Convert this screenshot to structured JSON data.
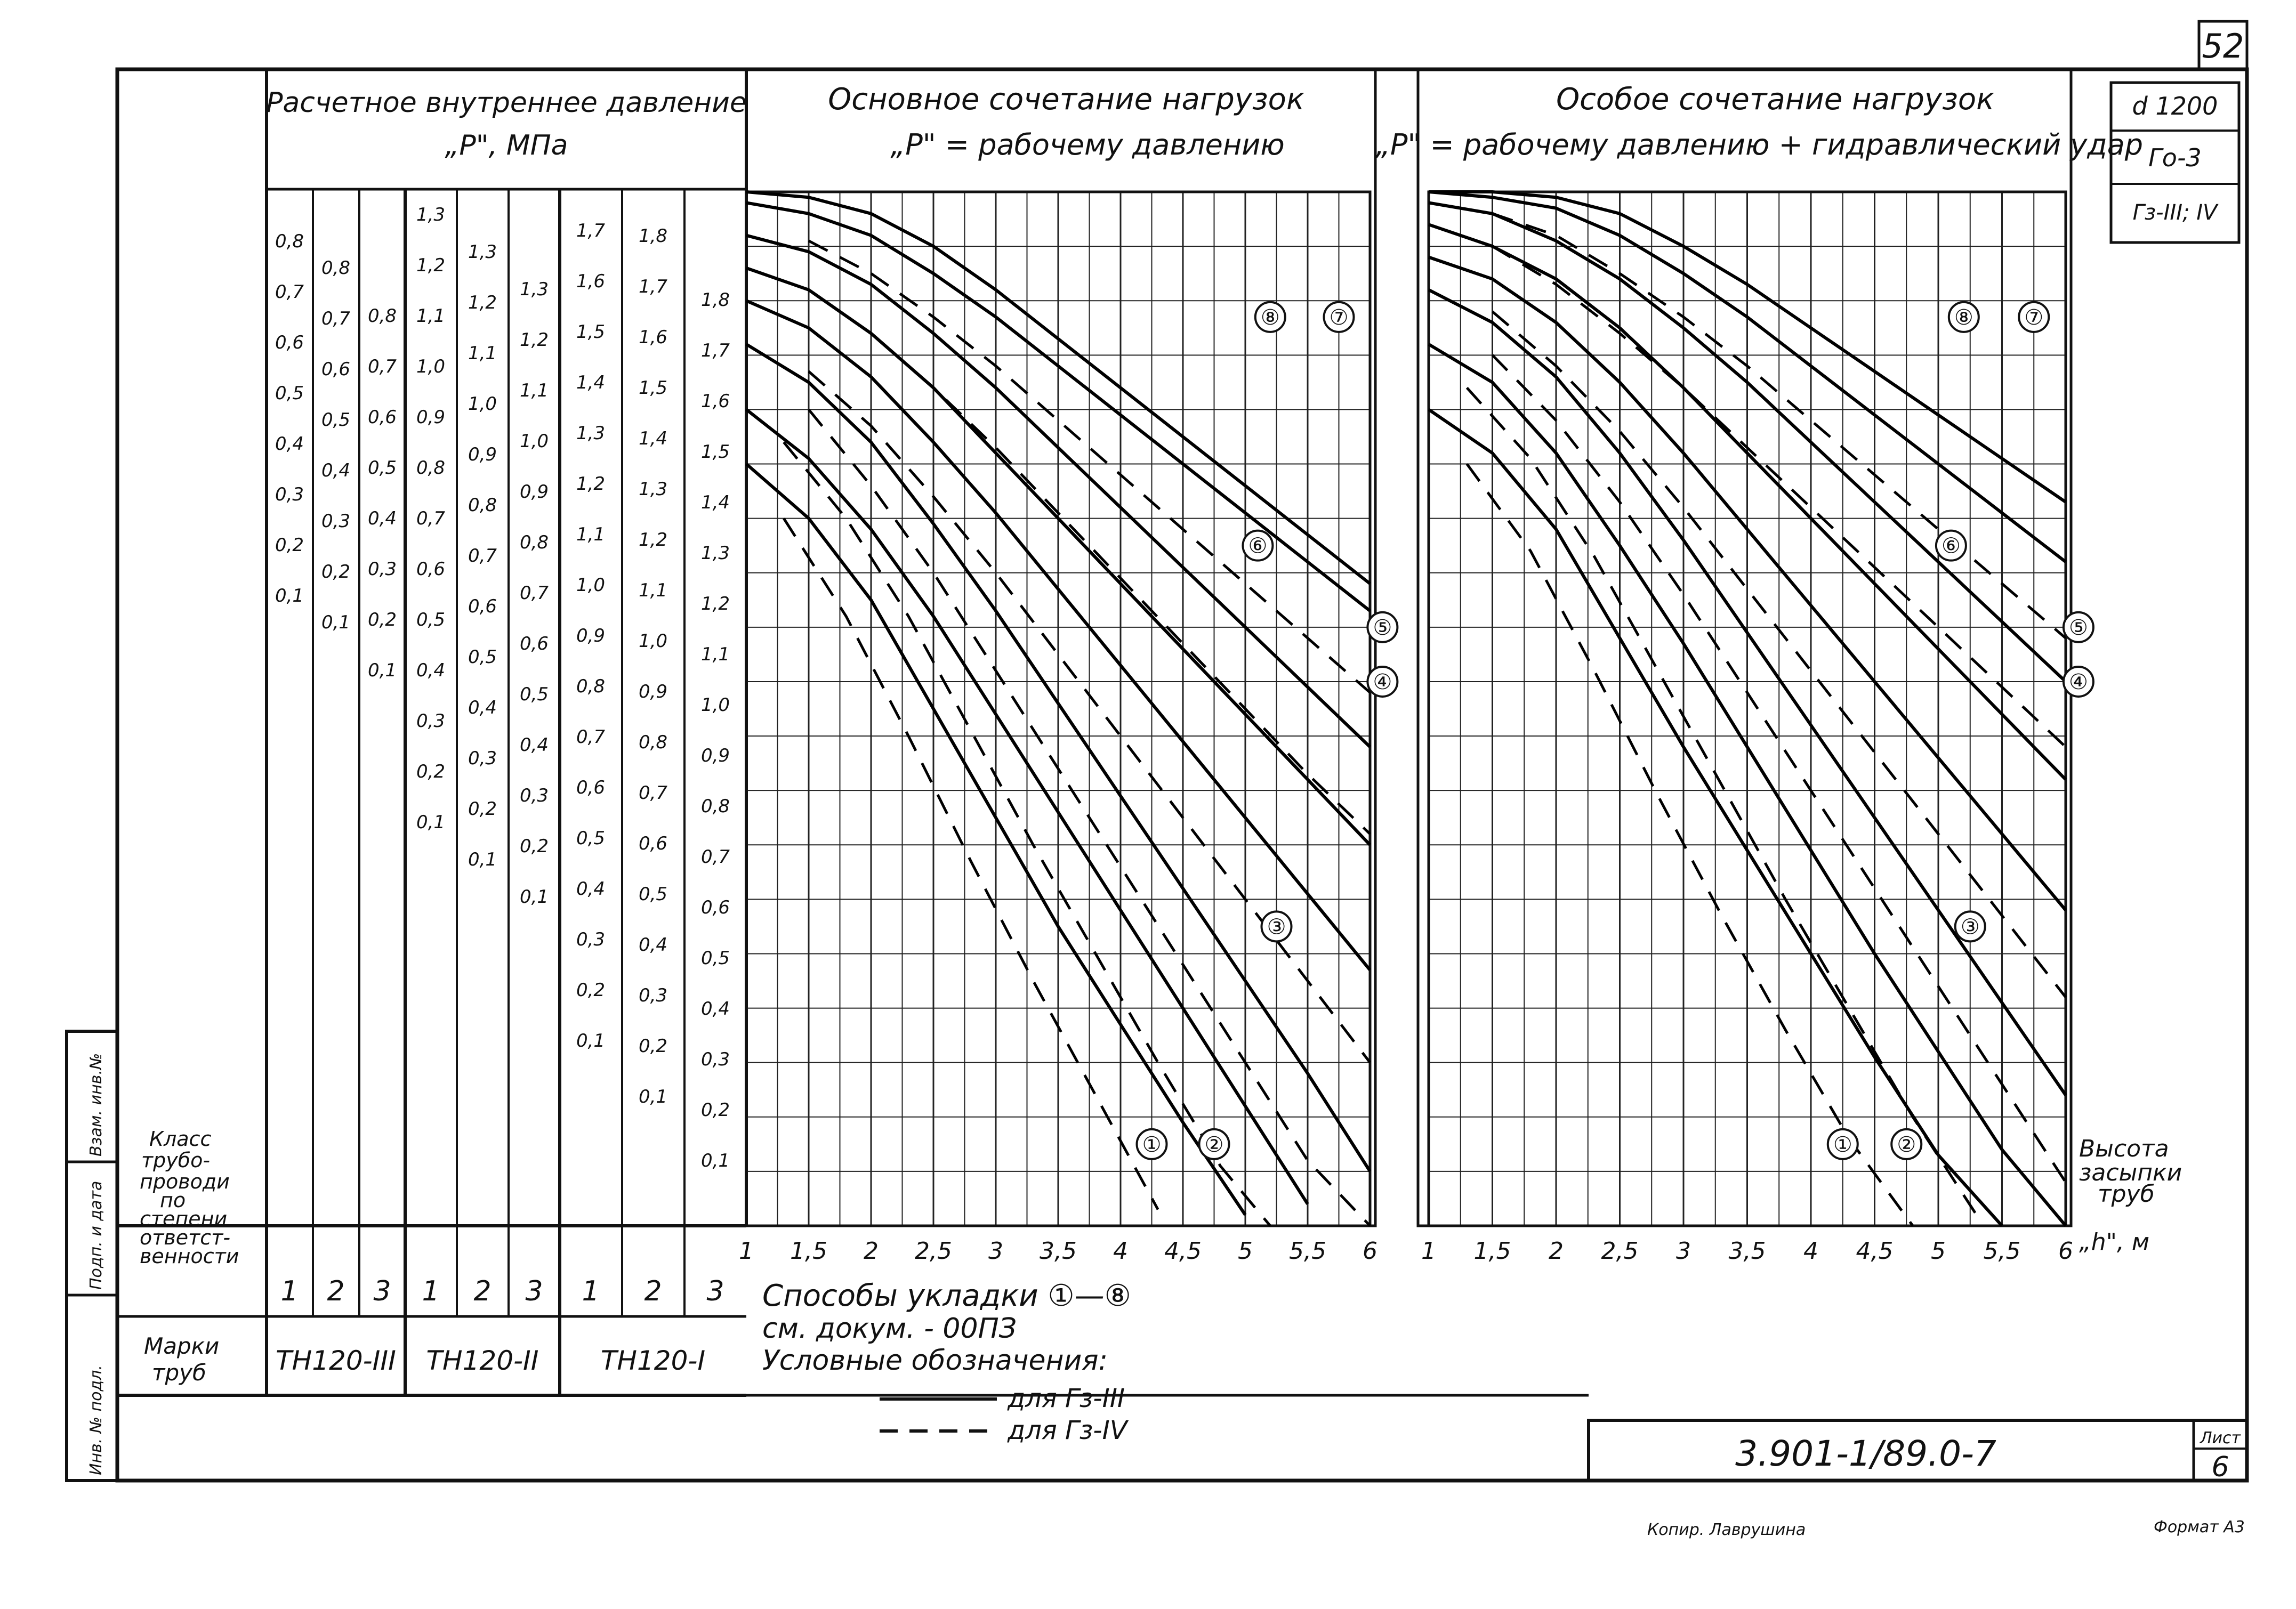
{
  "sheet": {
    "page_number": "52",
    "doc_code": "3.901-1/89.0-7",
    "sheet_label": "Лист",
    "sheet_number": "6",
    "copied_by": "Копир. Лаврушина",
    "format": "Формат А3",
    "side_stamp": [
      "Инв. № подл.",
      "Подп. и дата",
      "Взам. инв.№"
    ]
  },
  "corner_box": [
    "d 1200",
    "Го-3",
    "Гз-III; IV"
  ],
  "left_table": {
    "header_title": "Расчетное внутреннее давление",
    "header_sub": "„P\", МПа",
    "class_label": [
      "Класс",
      "трубо-",
      "проводи",
      "по",
      "степени",
      "ответст-",
      "венности"
    ],
    "class_numbers": [
      "1",
      "2",
      "3",
      "1",
      "2",
      "3",
      "1",
      "2",
      "3"
    ],
    "mark_label": [
      "Марки",
      "труб"
    ],
    "marks": [
      "ТН120-III",
      "ТН120-II",
      "ТН120-I"
    ]
  },
  "pressure_columns": [
    {
      "ticks": [
        "0,8",
        "0,7",
        "0,6",
        "0,5",
        "0,4",
        "0,3",
        "0,2",
        "0,1"
      ]
    },
    {
      "ticks": [
        "0,8",
        "0,7",
        "0,6",
        "0,5",
        "0,4",
        "0,3",
        "0,2",
        "0,1"
      ]
    },
    {
      "ticks": [
        "0,8",
        "0,7",
        "0,6",
        "0,5",
        "0,4",
        "0,3",
        "0,2",
        "0,1"
      ]
    },
    {
      "ticks": [
        "1,3",
        "1,2",
        "1,1",
        "1,0",
        "0,9",
        "0,8",
        "0,7",
        "0,6",
        "0,5",
        "0,4",
        "0,3",
        "0,2",
        "0,1"
      ]
    },
    {
      "ticks": [
        "1,3",
        "1,2",
        "1,1",
        "1,0",
        "0,9",
        "0,8",
        "0,7",
        "0,6",
        "0,5",
        "0,4",
        "0,3",
        "0,2",
        "0,1"
      ]
    },
    {
      "ticks": [
        "1,3",
        "1,2",
        "1,1",
        "1,0",
        "0,9",
        "0,8",
        "0,7",
        "0,6",
        "0,5",
        "0,4",
        "0,3",
        "0,2",
        "0,1"
      ]
    },
    {
      "ticks": [
        "1,7",
        "1,6",
        "1,5",
        "1,4",
        "1,3",
        "1,2",
        "1,1",
        "1,0",
        "0,9",
        "0,8",
        "0,7",
        "0,6",
        "0,5",
        "0,4",
        "0,3",
        "0,2",
        "0,1"
      ]
    },
    {
      "ticks": [
        "1,8",
        "1,7",
        "1,6",
        "1,5",
        "1,4",
        "1,3",
        "1,2",
        "1,1",
        "1,0",
        "0,9",
        "0,8",
        "0,7",
        "0,6",
        "0,5",
        "0,4",
        "0,3",
        "0,2",
        "0,1"
      ]
    },
    {
      "ticks": [
        "1,8",
        "1,7",
        "1,6",
        "1,5",
        "1,4",
        "1,3",
        "1,2",
        "1,1",
        "1,0",
        "0,9",
        "0,8",
        "0,7",
        "0,6",
        "0,5",
        "0,4",
        "0,3",
        "0,2",
        "0,1"
      ]
    }
  ],
  "notes": {
    "methods": "Способы укладки ①—⑧",
    "ref": "см. докум. - 00ПЗ",
    "legend_title": "Условные обозначения:",
    "legend_solid": "для Гз-III",
    "legend_dashed": "для Гз-IV"
  },
  "x_axis_title": [
    "Высота",
    "засыпки",
    "труб",
    "„h\", м"
  ],
  "chart_data": [
    {
      "type": "line",
      "title": "Основное сочетание нагрузок",
      "subtitle": "„P\" = рабочему давлению",
      "x_ticks": [
        "1",
        "1,5",
        "2",
        "2,5",
        "3",
        "3,5",
        "4",
        "4,5",
        "5",
        "5,5",
        "6"
      ],
      "xlim": [
        1,
        6
      ],
      "ylim": [
        0,
        1.9
      ],
      "grid": true,
      "callouts": [
        "①",
        "②",
        "③",
        "④",
        "⑤",
        "⑥",
        "⑦",
        "⑧"
      ],
      "series": [
        {
          "name": "1",
          "style": "solid",
          "x": [
            1.0,
            1.5,
            2.0,
            2.5,
            3.0,
            3.5,
            4.0,
            4.5,
            5.0
          ],
          "y": [
            1.4,
            1.3,
            1.15,
            0.95,
            0.75,
            0.55,
            0.37,
            0.19,
            0.02
          ]
        },
        {
          "name": "1",
          "style": "dashed",
          "x": [
            1.3,
            1.8,
            2.3,
            2.8,
            3.3,
            3.8,
            4.3
          ],
          "y": [
            1.3,
            1.12,
            0.9,
            0.67,
            0.45,
            0.24,
            0.03
          ]
        },
        {
          "name": "2",
          "style": "solid",
          "x": [
            1.0,
            1.5,
            2.0,
            2.5,
            3.0,
            3.5,
            4.0,
            4.5,
            5.0,
            5.5
          ],
          "y": [
            1.5,
            1.41,
            1.28,
            1.12,
            0.94,
            0.76,
            0.58,
            0.4,
            0.22,
            0.04
          ]
        },
        {
          "name": "2",
          "style": "dashed",
          "x": [
            1.3,
            1.8,
            2.3,
            2.8,
            3.3,
            3.8,
            4.3,
            4.8,
            5.2
          ],
          "y": [
            1.44,
            1.3,
            1.12,
            0.91,
            0.7,
            0.5,
            0.3,
            0.11,
            0.0
          ]
        },
        {
          "name": "3",
          "style": "solid",
          "x": [
            1.0,
            1.5,
            2.0,
            2.5,
            3.0,
            3.5,
            4.0,
            4.5,
            5.0,
            5.5,
            6.0
          ],
          "y": [
            1.62,
            1.55,
            1.44,
            1.29,
            1.13,
            0.96,
            0.79,
            0.62,
            0.45,
            0.28,
            0.1
          ]
        },
        {
          "name": "3",
          "style": "dashed",
          "x": [
            1.5,
            2.0,
            2.5,
            3.0,
            3.5,
            4.0,
            4.5,
            5.0,
            5.5,
            6.0
          ],
          "y": [
            1.5,
            1.36,
            1.2,
            1.02,
            0.84,
            0.66,
            0.48,
            0.3,
            0.12,
            0.0
          ]
        },
        {
          "name": "4",
          "style": "solid",
          "x": [
            1.0,
            1.5,
            2.0,
            2.5,
            3.0,
            3.5,
            4.0,
            4.5,
            5.0,
            5.5,
            6.0
          ],
          "y": [
            1.7,
            1.65,
            1.56,
            1.44,
            1.31,
            1.17,
            1.03,
            0.89,
            0.75,
            0.61,
            0.47
          ]
        },
        {
          "name": "4",
          "style": "dashed",
          "x": [
            1.5,
            2.0,
            2.5,
            3.0,
            3.5,
            4.0,
            4.5,
            5.0,
            5.5,
            6.0
          ],
          "y": [
            1.57,
            1.47,
            1.34,
            1.2,
            1.05,
            0.9,
            0.75,
            0.6,
            0.45,
            0.3
          ]
        },
        {
          "name": "5",
          "style": "solid",
          "x": [
            1.0,
            1.5,
            2.0,
            2.5,
            3.0,
            3.5,
            4.0,
            4.5,
            5.0,
            5.5,
            6.0
          ],
          "y": [
            1.76,
            1.72,
            1.64,
            1.54,
            1.42,
            1.3,
            1.18,
            1.06,
            0.94,
            0.82,
            0.7
          ]
        },
        {
          "name": "6",
          "style": "solid",
          "x": [
            1.0,
            1.5,
            2.0,
            2.5,
            3.0,
            3.5,
            4.0,
            4.5,
            5.0,
            5.5,
            6.0
          ],
          "y": [
            1.82,
            1.79,
            1.73,
            1.64,
            1.54,
            1.43,
            1.32,
            1.21,
            1.1,
            0.99,
            0.88
          ]
        },
        {
          "name": "6",
          "style": "dashed",
          "x": [
            1.5,
            2.0,
            2.5,
            3.0,
            3.5,
            4.0,
            4.5,
            5.0,
            5.5,
            6.0
          ],
          "y": [
            1.72,
            1.64,
            1.54,
            1.43,
            1.31,
            1.19,
            1.07,
            0.95,
            0.83,
            0.72
          ]
        },
        {
          "name": "7",
          "style": "solid",
          "x": [
            1.0,
            1.5,
            2.0,
            2.5,
            3.0,
            3.5,
            4.0,
            4.5,
            5.0,
            5.5,
            6.0
          ],
          "y": [
            1.88,
            1.86,
            1.82,
            1.75,
            1.67,
            1.58,
            1.49,
            1.4,
            1.31,
            1.22,
            1.13
          ]
        },
        {
          "name": "7",
          "style": "dashed",
          "x": [
            1.5,
            2.0,
            2.5,
            3.0,
            3.5,
            4.0,
            4.5,
            5.0,
            5.5,
            6.0
          ],
          "y": [
            1.81,
            1.75,
            1.67,
            1.58,
            1.48,
            1.38,
            1.28,
            1.18,
            1.08,
            0.98
          ]
        },
        {
          "name": "8",
          "style": "solid",
          "x": [
            1.0,
            1.5,
            2.0,
            2.5,
            3.0,
            3.5,
            4.0,
            4.5,
            5.0,
            5.5,
            6.0
          ],
          "y": [
            1.9,
            1.89,
            1.86,
            1.8,
            1.72,
            1.63,
            1.54,
            1.45,
            1.36,
            1.27,
            1.18
          ]
        }
      ]
    },
    {
      "type": "line",
      "title": "Особое сочетание нагрузок",
      "subtitle": "„P\" = рабочему давлению + гидравлический удар",
      "x_ticks": [
        "1",
        "1,5",
        "2",
        "2,5",
        "3",
        "3,5",
        "4",
        "4,5",
        "5",
        "5,5",
        "6"
      ],
      "xlim": [
        1,
        6
      ],
      "ylim": [
        0,
        1.9
      ],
      "grid": true,
      "callouts": [
        "①",
        "②",
        "③",
        "④",
        "⑤",
        "⑥",
        "⑦",
        "⑧"
      ],
      "series": [
        {
          "name": "1",
          "style": "solid",
          "x": [
            1.0,
            1.5,
            2.0,
            2.5,
            3.0,
            3.5,
            4.0,
            4.5,
            5.0,
            5.5
          ],
          "y": [
            1.5,
            1.42,
            1.28,
            1.08,
            0.88,
            0.69,
            0.5,
            0.31,
            0.13,
            0.0
          ]
        },
        {
          "name": "1",
          "style": "dashed",
          "x": [
            1.3,
            1.8,
            2.3,
            2.8,
            3.3,
            3.8,
            4.3,
            4.8
          ],
          "y": [
            1.4,
            1.24,
            1.02,
            0.79,
            0.57,
            0.36,
            0.16,
            0.0
          ]
        },
        {
          "name": "2",
          "style": "solid",
          "x": [
            1.0,
            1.5,
            2.0,
            2.5,
            3.0,
            3.5,
            4.0,
            4.5,
            5.0,
            5.5,
            6.0
          ],
          "y": [
            1.62,
            1.55,
            1.42,
            1.25,
            1.07,
            0.88,
            0.69,
            0.5,
            0.32,
            0.14,
            0.0
          ]
        },
        {
          "name": "2",
          "style": "dashed",
          "x": [
            1.3,
            1.8,
            2.3,
            2.8,
            3.3,
            3.8,
            4.3,
            4.8,
            5.3
          ],
          "y": [
            1.54,
            1.41,
            1.23,
            1.02,
            0.81,
            0.6,
            0.4,
            0.2,
            0.02
          ]
        },
        {
          "name": "3",
          "style": "solid",
          "x": [
            1.0,
            1.5,
            2.0,
            2.5,
            3.0,
            3.5,
            4.0,
            4.5,
            5.0,
            5.5,
            6.0
          ],
          "y": [
            1.72,
            1.66,
            1.56,
            1.42,
            1.26,
            1.09,
            0.92,
            0.75,
            0.58,
            0.41,
            0.24
          ]
        },
        {
          "name": "3",
          "style": "dashed",
          "x": [
            1.5,
            2.0,
            2.5,
            3.0,
            3.5,
            4.0,
            4.5,
            5.0,
            5.5,
            6.0
          ],
          "y": [
            1.6,
            1.48,
            1.33,
            1.16,
            0.98,
            0.8,
            0.62,
            0.44,
            0.26,
            0.08
          ]
        },
        {
          "name": "4",
          "style": "solid",
          "x": [
            1.0,
            1.5,
            2.0,
            2.5,
            3.0,
            3.5,
            4.0,
            4.5,
            5.0,
            5.5,
            6.0
          ],
          "y": [
            1.78,
            1.74,
            1.66,
            1.55,
            1.42,
            1.28,
            1.14,
            1.0,
            0.86,
            0.72,
            0.58
          ]
        },
        {
          "name": "4",
          "style": "dashed",
          "x": [
            1.5,
            2.0,
            2.5,
            3.0,
            3.5,
            4.0,
            4.5,
            5.0,
            5.5,
            6.0
          ],
          "y": [
            1.68,
            1.58,
            1.46,
            1.32,
            1.17,
            1.02,
            0.87,
            0.72,
            0.57,
            0.42
          ]
        },
        {
          "name": "5",
          "style": "solid",
          "x": [
            1.0,
            1.5,
            2.0,
            2.5,
            3.0,
            3.5,
            4.0,
            4.5,
            5.0,
            5.5,
            6.0
          ],
          "y": [
            1.84,
            1.8,
            1.74,
            1.65,
            1.54,
            1.42,
            1.3,
            1.18,
            1.06,
            0.94,
            0.82
          ]
        },
        {
          "name": "6",
          "style": "solid",
          "x": [
            1.0,
            1.5,
            2.0,
            2.5,
            3.0,
            3.5,
            4.0,
            4.5,
            5.0,
            5.5,
            6.0
          ],
          "y": [
            1.88,
            1.86,
            1.81,
            1.74,
            1.65,
            1.55,
            1.44,
            1.33,
            1.22,
            1.11,
            1.0
          ]
        },
        {
          "name": "6",
          "style": "dashed",
          "x": [
            1.5,
            2.0,
            2.5,
            3.0,
            3.5,
            4.0,
            4.5,
            5.0,
            5.5,
            6.0
          ],
          "y": [
            1.8,
            1.73,
            1.64,
            1.54,
            1.43,
            1.32,
            1.21,
            1.1,
            0.99,
            0.88
          ]
        },
        {
          "name": "7",
          "style": "solid",
          "x": [
            1.0,
            1.5,
            2.0,
            2.5,
            3.0,
            3.5,
            4.0,
            4.5,
            5.0,
            5.5,
            6.0
          ],
          "y": [
            1.9,
            1.89,
            1.87,
            1.82,
            1.75,
            1.67,
            1.58,
            1.49,
            1.4,
            1.31,
            1.22
          ]
        },
        {
          "name": "7",
          "style": "dashed",
          "x": [
            1.5,
            2.0,
            2.5,
            3.0,
            3.5,
            4.0,
            4.5,
            5.0,
            5.5,
            6.0
          ],
          "y": [
            1.86,
            1.82,
            1.75,
            1.67,
            1.58,
            1.48,
            1.38,
            1.28,
            1.18,
            1.08
          ]
        },
        {
          "name": "8",
          "style": "solid",
          "x": [
            1.0,
            1.5,
            2.0,
            2.5,
            3.0,
            3.5,
            4.0,
            4.5,
            5.0,
            5.5,
            6.0
          ],
          "y": [
            1.9,
            1.9,
            1.89,
            1.86,
            1.8,
            1.73,
            1.65,
            1.57,
            1.49,
            1.41,
            1.33
          ]
        }
      ]
    }
  ]
}
